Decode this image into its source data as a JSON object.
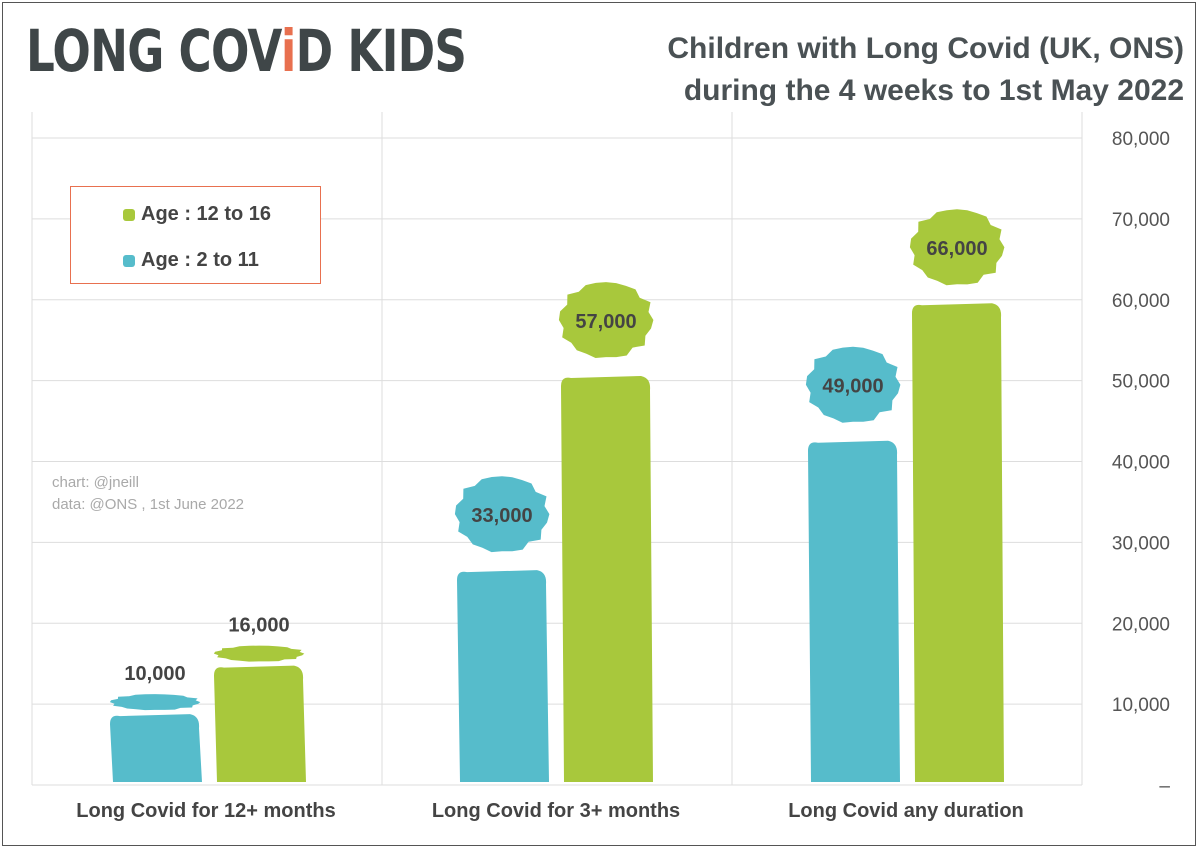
{
  "header": {
    "logo_text_part1": "LONG COV",
    "logo_text_accent": "i",
    "logo_text_part2": "D KIDS",
    "title_line1": "Children with Long Covid (UK, ONS)",
    "title_line2": "during the 4 weeks to 1st May 2022"
  },
  "credit": {
    "chart": "chart: @jneill",
    "data": "data: @ONS , 1st June 2022"
  },
  "colors": {
    "age_12_16": "#a8c83c",
    "age_2_11": "#56bccb",
    "legend_border": "#e8704f",
    "grid": "#dddddd",
    "text": "#444444"
  },
  "chart_data": {
    "type": "bar",
    "categories": [
      "Long Covid for 12+ months",
      "Long Covid for 3+ months",
      "Long Covid any duration"
    ],
    "series": [
      {
        "name": "Age : 2 to 11",
        "values": [
          10000,
          33000,
          49000
        ],
        "labels": [
          "10,000",
          "33,000",
          "49,000"
        ]
      },
      {
        "name": "Age : 12 to 16",
        "values": [
          16000,
          57000,
          66000
        ],
        "labels": [
          "16,000",
          "57,000",
          "66,000"
        ]
      }
    ],
    "legend": [
      "Age : 12 to 16",
      "Age : 2 to 11"
    ],
    "legend_position": "top-left",
    "ylim": [
      0,
      80000
    ],
    "yticks": [
      {
        "value": 0,
        "label": "–"
      },
      {
        "value": 10000,
        "label": "10,000"
      },
      {
        "value": 20000,
        "label": "20,000"
      },
      {
        "value": 30000,
        "label": "30,000"
      },
      {
        "value": 40000,
        "label": "40,000"
      },
      {
        "value": 50000,
        "label": "50,000"
      },
      {
        "value": 60000,
        "label": "60,000"
      },
      {
        "value": 70000,
        "label": "70,000"
      },
      {
        "value": 80000,
        "label": "80,000"
      }
    ],
    "y_axis_position": "right",
    "grid": true
  }
}
